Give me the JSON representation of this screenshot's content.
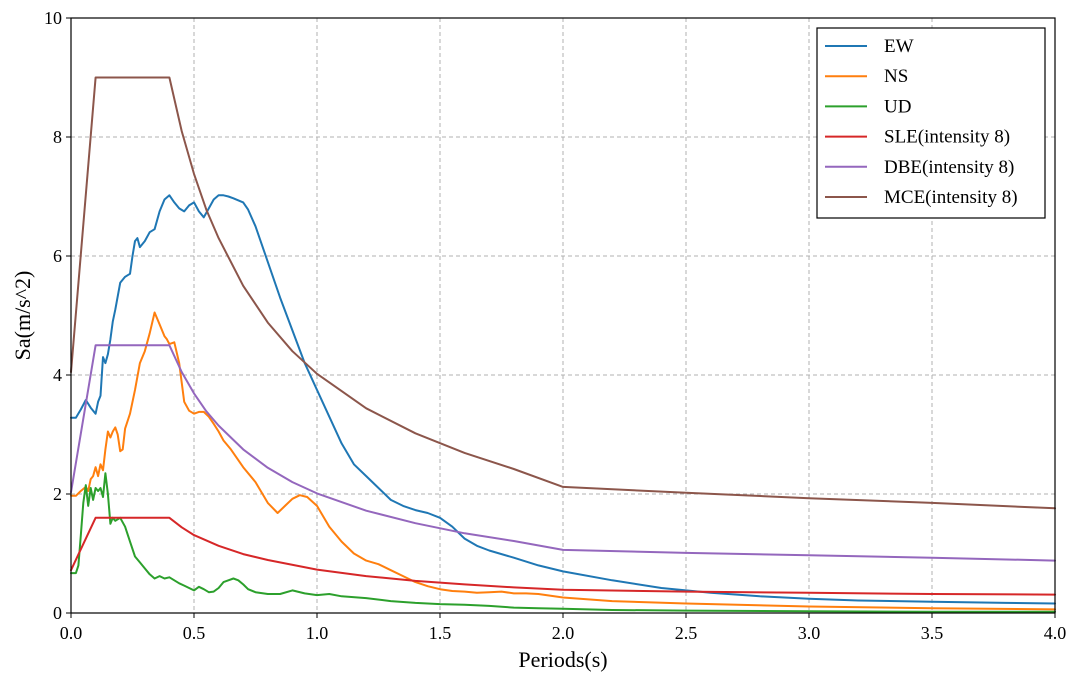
{
  "chart_data": {
    "type": "line",
    "xlabel": "Periods(s)",
    "ylabel": "Sa(m/s^2)",
    "xlim": [
      0,
      4
    ],
    "ylim": [
      0,
      10
    ],
    "x_ticks": [
      {
        "value": 0.0,
        "label": "0.0"
      },
      {
        "value": 0.5,
        "label": "0.5"
      },
      {
        "value": 1.0,
        "label": "1.0"
      },
      {
        "value": 1.5,
        "label": "1.5"
      },
      {
        "value": 2.0,
        "label": "2.0"
      },
      {
        "value": 2.5,
        "label": "2.5"
      },
      {
        "value": 3.0,
        "label": "3.0"
      },
      {
        "value": 3.5,
        "label": "3.5"
      },
      {
        "value": 4.0,
        "label": "4.0"
      }
    ],
    "y_ticks": [
      {
        "value": 0,
        "label": "0"
      },
      {
        "value": 2,
        "label": "2"
      },
      {
        "value": 4,
        "label": "4"
      },
      {
        "value": 6,
        "label": "6"
      },
      {
        "value": 8,
        "label": "8"
      },
      {
        "value": 10,
        "label": "10"
      }
    ],
    "grid": true,
    "legend_position": "top-right",
    "series": [
      {
        "name": "EW",
        "color": "#1f77b4",
        "points": [
          [
            0,
            3.28
          ],
          [
            0.02,
            3.28
          ],
          [
            0.04,
            3.42
          ],
          [
            0.06,
            3.58
          ],
          [
            0.08,
            3.45
          ],
          [
            0.1,
            3.35
          ],
          [
            0.11,
            3.55
          ],
          [
            0.12,
            3.65
          ],
          [
            0.13,
            4.3
          ],
          [
            0.14,
            4.2
          ],
          [
            0.15,
            4.35
          ],
          [
            0.16,
            4.6
          ],
          [
            0.17,
            4.9
          ],
          [
            0.18,
            5.1
          ],
          [
            0.2,
            5.55
          ],
          [
            0.22,
            5.65
          ],
          [
            0.24,
            5.7
          ],
          [
            0.25,
            6.0
          ],
          [
            0.26,
            6.25
          ],
          [
            0.27,
            6.3
          ],
          [
            0.28,
            6.15
          ],
          [
            0.3,
            6.25
          ],
          [
            0.32,
            6.4
          ],
          [
            0.34,
            6.45
          ],
          [
            0.36,
            6.75
          ],
          [
            0.38,
            6.95
          ],
          [
            0.4,
            7.02
          ],
          [
            0.42,
            6.9
          ],
          [
            0.44,
            6.8
          ],
          [
            0.46,
            6.75
          ],
          [
            0.48,
            6.85
          ],
          [
            0.5,
            6.9
          ],
          [
            0.52,
            6.75
          ],
          [
            0.54,
            6.65
          ],
          [
            0.56,
            6.8
          ],
          [
            0.58,
            6.95
          ],
          [
            0.6,
            7.02
          ],
          [
            0.62,
            7.02
          ],
          [
            0.64,
            7.0
          ],
          [
            0.66,
            6.97
          ],
          [
            0.7,
            6.9
          ],
          [
            0.72,
            6.78
          ],
          [
            0.75,
            6.5
          ],
          [
            0.8,
            5.9
          ],
          [
            0.85,
            5.3
          ],
          [
            0.9,
            4.75
          ],
          [
            0.95,
            4.2
          ],
          [
            1.0,
            3.75
          ],
          [
            1.05,
            3.3
          ],
          [
            1.1,
            2.85
          ],
          [
            1.15,
            2.5
          ],
          [
            1.2,
            2.3
          ],
          [
            1.25,
            2.1
          ],
          [
            1.3,
            1.9
          ],
          [
            1.35,
            1.8
          ],
          [
            1.4,
            1.73
          ],
          [
            1.45,
            1.68
          ],
          [
            1.5,
            1.6
          ],
          [
            1.55,
            1.45
          ],
          [
            1.6,
            1.25
          ],
          [
            1.65,
            1.13
          ],
          [
            1.7,
            1.05
          ],
          [
            1.8,
            0.93
          ],
          [
            1.9,
            0.8
          ],
          [
            2.0,
            0.7
          ],
          [
            2.2,
            0.55
          ],
          [
            2.4,
            0.42
          ],
          [
            2.6,
            0.34
          ],
          [
            2.8,
            0.28
          ],
          [
            3.0,
            0.24
          ],
          [
            3.2,
            0.21
          ],
          [
            3.5,
            0.19
          ],
          [
            3.8,
            0.17
          ],
          [
            4.0,
            0.16
          ]
        ]
      },
      {
        "name": "NS",
        "color": "#ff7f0e",
        "points": [
          [
            0,
            1.97
          ],
          [
            0.02,
            1.97
          ],
          [
            0.04,
            2.05
          ],
          [
            0.06,
            2.12
          ],
          [
            0.07,
            2.05
          ],
          [
            0.08,
            2.25
          ],
          [
            0.09,
            2.3
          ],
          [
            0.1,
            2.45
          ],
          [
            0.11,
            2.3
          ],
          [
            0.12,
            2.5
          ],
          [
            0.13,
            2.4
          ],
          [
            0.14,
            2.75
          ],
          [
            0.15,
            3.05
          ],
          [
            0.16,
            2.95
          ],
          [
            0.17,
            3.05
          ],
          [
            0.18,
            3.12
          ],
          [
            0.19,
            3.0
          ],
          [
            0.2,
            2.72
          ],
          [
            0.21,
            2.75
          ],
          [
            0.22,
            3.1
          ],
          [
            0.24,
            3.35
          ],
          [
            0.26,
            3.75
          ],
          [
            0.28,
            4.2
          ],
          [
            0.3,
            4.4
          ],
          [
            0.32,
            4.7
          ],
          [
            0.34,
            5.05
          ],
          [
            0.36,
            4.85
          ],
          [
            0.38,
            4.65
          ],
          [
            0.39,
            4.6
          ],
          [
            0.4,
            4.52
          ],
          [
            0.42,
            4.55
          ],
          [
            0.44,
            4.2
          ],
          [
            0.46,
            3.55
          ],
          [
            0.48,
            3.4
          ],
          [
            0.5,
            3.35
          ],
          [
            0.52,
            3.38
          ],
          [
            0.54,
            3.38
          ],
          [
            0.56,
            3.3
          ],
          [
            0.58,
            3.18
          ],
          [
            0.6,
            3.05
          ],
          [
            0.62,
            2.9
          ],
          [
            0.65,
            2.75
          ],
          [
            0.7,
            2.45
          ],
          [
            0.75,
            2.2
          ],
          [
            0.8,
            1.85
          ],
          [
            0.84,
            1.68
          ],
          [
            0.87,
            1.8
          ],
          [
            0.9,
            1.92
          ],
          [
            0.93,
            1.98
          ],
          [
            0.96,
            1.95
          ],
          [
            1.0,
            1.8
          ],
          [
            1.05,
            1.45
          ],
          [
            1.1,
            1.2
          ],
          [
            1.15,
            1.0
          ],
          [
            1.2,
            0.88
          ],
          [
            1.25,
            0.82
          ],
          [
            1.3,
            0.72
          ],
          [
            1.35,
            0.62
          ],
          [
            1.4,
            0.52
          ],
          [
            1.45,
            0.45
          ],
          [
            1.5,
            0.4
          ],
          [
            1.55,
            0.37
          ],
          [
            1.6,
            0.36
          ],
          [
            1.65,
            0.34
          ],
          [
            1.7,
            0.35
          ],
          [
            1.75,
            0.36
          ],
          [
            1.8,
            0.33
          ],
          [
            1.85,
            0.33
          ],
          [
            1.9,
            0.32
          ],
          [
            2.0,
            0.26
          ],
          [
            2.2,
            0.2
          ],
          [
            2.5,
            0.16
          ],
          [
            3.0,
            0.11
          ],
          [
            3.5,
            0.08
          ],
          [
            4.0,
            0.06
          ]
        ]
      },
      {
        "name": "UD",
        "color": "#2ca02c",
        "points": [
          [
            0,
            0.67
          ],
          [
            0.02,
            0.67
          ],
          [
            0.03,
            0.8
          ],
          [
            0.04,
            1.3
          ],
          [
            0.05,
            1.85
          ],
          [
            0.06,
            2.15
          ],
          [
            0.07,
            1.8
          ],
          [
            0.08,
            2.1
          ],
          [
            0.09,
            1.9
          ],
          [
            0.1,
            2.1
          ],
          [
            0.11,
            2.05
          ],
          [
            0.12,
            2.1
          ],
          [
            0.13,
            1.95
          ],
          [
            0.14,
            2.35
          ],
          [
            0.15,
            2.0
          ],
          [
            0.16,
            1.5
          ],
          [
            0.17,
            1.6
          ],
          [
            0.18,
            1.55
          ],
          [
            0.2,
            1.6
          ],
          [
            0.22,
            1.45
          ],
          [
            0.24,
            1.2
          ],
          [
            0.26,
            0.95
          ],
          [
            0.28,
            0.85
          ],
          [
            0.3,
            0.75
          ],
          [
            0.32,
            0.65
          ],
          [
            0.34,
            0.58
          ],
          [
            0.36,
            0.62
          ],
          [
            0.38,
            0.58
          ],
          [
            0.4,
            0.6
          ],
          [
            0.42,
            0.55
          ],
          [
            0.44,
            0.5
          ],
          [
            0.46,
            0.46
          ],
          [
            0.48,
            0.42
          ],
          [
            0.5,
            0.38
          ],
          [
            0.52,
            0.44
          ],
          [
            0.54,
            0.4
          ],
          [
            0.56,
            0.35
          ],
          [
            0.58,
            0.36
          ],
          [
            0.6,
            0.42
          ],
          [
            0.62,
            0.52
          ],
          [
            0.64,
            0.55
          ],
          [
            0.66,
            0.58
          ],
          [
            0.68,
            0.55
          ],
          [
            0.7,
            0.48
          ],
          [
            0.72,
            0.4
          ],
          [
            0.75,
            0.35
          ],
          [
            0.8,
            0.32
          ],
          [
            0.85,
            0.32
          ],
          [
            0.9,
            0.38
          ],
          [
            0.95,
            0.33
          ],
          [
            1.0,
            0.3
          ],
          [
            1.05,
            0.32
          ],
          [
            1.1,
            0.28
          ],
          [
            1.2,
            0.25
          ],
          [
            1.3,
            0.2
          ],
          [
            1.4,
            0.17
          ],
          [
            1.5,
            0.15
          ],
          [
            1.6,
            0.14
          ],
          [
            1.7,
            0.12
          ],
          [
            1.8,
            0.09
          ],
          [
            1.9,
            0.08
          ],
          [
            2.0,
            0.07
          ],
          [
            2.2,
            0.05
          ],
          [
            2.5,
            0.04
          ],
          [
            3.0,
            0.03
          ],
          [
            3.5,
            0.02
          ],
          [
            4.0,
            0.02
          ]
        ]
      },
      {
        "name": "SLE(intensity 8)",
        "color": "#d62728",
        "points": [
          [
            0,
            0.72
          ],
          [
            0.1,
            1.6
          ],
          [
            0.4,
            1.6
          ],
          [
            0.45,
            1.44
          ],
          [
            0.5,
            1.31
          ],
          [
            0.6,
            1.13
          ],
          [
            0.7,
            0.99
          ],
          [
            0.8,
            0.89
          ],
          [
            1.0,
            0.73
          ],
          [
            1.2,
            0.62
          ],
          [
            1.4,
            0.54
          ],
          [
            1.6,
            0.48
          ],
          [
            1.8,
            0.43
          ],
          [
            2.0,
            0.39
          ],
          [
            2.5,
            0.36
          ],
          [
            3.0,
            0.34
          ],
          [
            3.5,
            0.32
          ],
          [
            4.0,
            0.31
          ]
        ]
      },
      {
        "name": "DBE(intensity 8)",
        "color": "#9467bd",
        "points": [
          [
            0,
            2.03
          ],
          [
            0.1,
            4.5
          ],
          [
            0.4,
            4.5
          ],
          [
            0.45,
            4.05
          ],
          [
            0.5,
            3.69
          ],
          [
            0.55,
            3.39
          ],
          [
            0.6,
            3.15
          ],
          [
            0.7,
            2.75
          ],
          [
            0.8,
            2.44
          ],
          [
            0.9,
            2.2
          ],
          [
            1.0,
            2.01
          ],
          [
            1.2,
            1.72
          ],
          [
            1.4,
            1.51
          ],
          [
            1.6,
            1.34
          ],
          [
            1.8,
            1.21
          ],
          [
            2.0,
            1.06
          ],
          [
            2.5,
            1.01
          ],
          [
            3.0,
            0.97
          ],
          [
            3.5,
            0.93
          ],
          [
            4.0,
            0.88
          ]
        ]
      },
      {
        "name": "MCE(intensity 8)",
        "color": "#8c564b",
        "points": [
          [
            0,
            4.05
          ],
          [
            0.1,
            9.0
          ],
          [
            0.4,
            9.0
          ],
          [
            0.45,
            8.1
          ],
          [
            0.5,
            7.38
          ],
          [
            0.55,
            6.78
          ],
          [
            0.6,
            6.3
          ],
          [
            0.7,
            5.5
          ],
          [
            0.8,
            4.88
          ],
          [
            0.9,
            4.4
          ],
          [
            1.0,
            4.02
          ],
          [
            1.2,
            3.44
          ],
          [
            1.4,
            3.02
          ],
          [
            1.6,
            2.69
          ],
          [
            1.8,
            2.42
          ],
          [
            2.0,
            2.12
          ],
          [
            2.5,
            2.02
          ],
          [
            3.0,
            1.93
          ],
          [
            3.5,
            1.85
          ],
          [
            4.0,
            1.76
          ]
        ]
      }
    ]
  }
}
